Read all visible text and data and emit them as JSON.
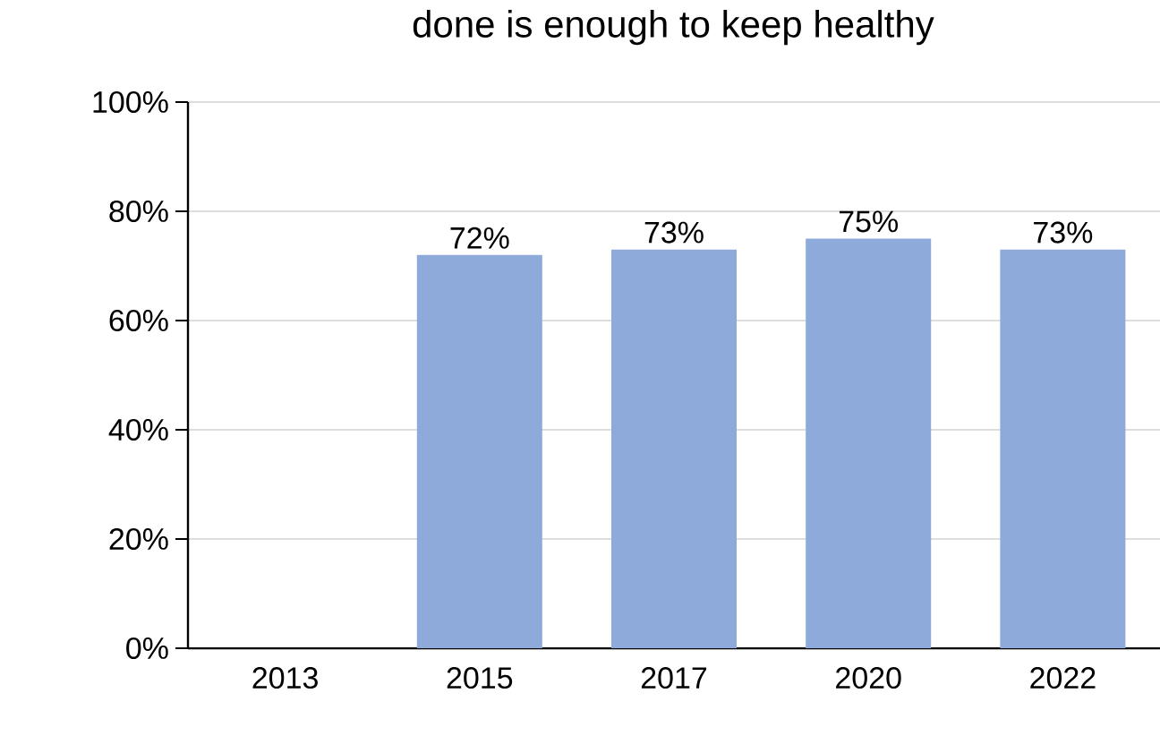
{
  "chart_data": {
    "type": "bar",
    "title": "done is enough to keep healthy",
    "categories": [
      "2013",
      "2015",
      "2017",
      "2020",
      "2022"
    ],
    "values": [
      null,
      72,
      73,
      75,
      73
    ],
    "value_labels": [
      null,
      "72%",
      "73%",
      "75%",
      "73%"
    ],
    "color": "#8eaadb",
    "ylim": [
      0,
      100
    ],
    "yticks": [
      {
        "value": 0,
        "label": "0%"
      },
      {
        "value": 20,
        "label": "20%"
      },
      {
        "value": 40,
        "label": "40%"
      },
      {
        "value": 60,
        "label": "60%"
      },
      {
        "value": 80,
        "label": "80%"
      },
      {
        "value": 100,
        "label": "100%"
      }
    ],
    "grid": "y"
  }
}
